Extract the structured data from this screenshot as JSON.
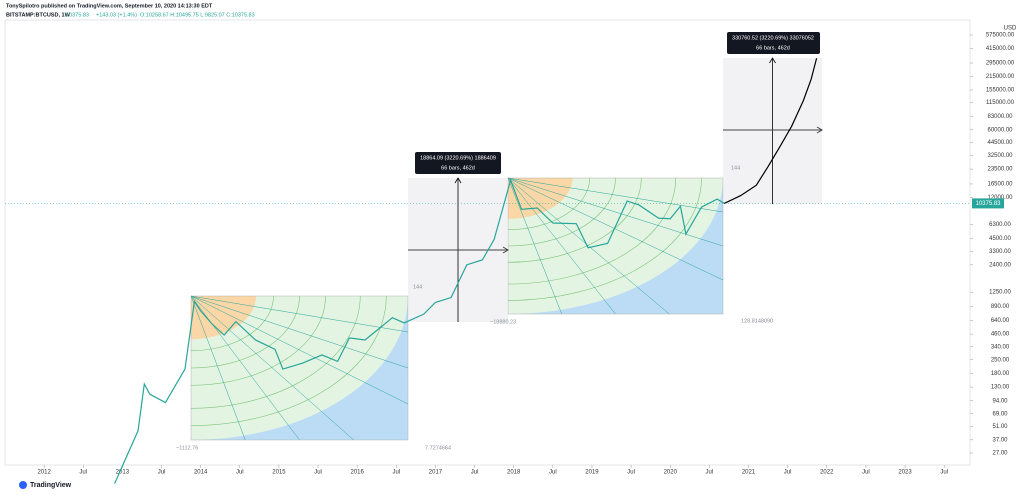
{
  "header": {
    "author_line": "TonySpilotro published on TradingView.com, September 10, 2020 14:13:30 EDT",
    "symbol_line": "BITSTAMP:BTCUSD, 1W",
    "last": "10375.83",
    "change": "+143.03 (+1.4%)",
    "ohlc": "O:10258.67  H:10495.75  L:9825.07  C:10375.83"
  },
  "footer": {
    "brand": "TradingView"
  },
  "chart_data": {
    "type": "line",
    "log_scale": true,
    "y_unit": "USD",
    "x": [
      2012.9,
      2013.2,
      2013.28,
      2013.35,
      2013.55,
      2013.8,
      2013.92,
      2014.0,
      2014.15,
      2014.3,
      2014.45,
      2014.7,
      2014.95,
      2015.05,
      2015.3,
      2015.55,
      2015.75,
      2015.9,
      2016.1,
      2016.45,
      2016.6,
      2016.85,
      2017.0,
      2017.2,
      2017.4,
      2017.6,
      2017.75,
      2017.96,
      2018.1,
      2018.3,
      2018.5,
      2018.8,
      2018.95,
      2019.2,
      2019.45,
      2019.6,
      2019.85,
      2020.0,
      2020.13,
      2020.2,
      2020.4,
      2020.6,
      2020.69,
      2020.9,
      2021.1,
      2021.25,
      2021.4,
      2021.55,
      2021.7,
      2021.8,
      2021.87
    ],
    "series": [
      {
        "color": "#26a69a",
        "values": [
          13,
          46,
          140,
          110,
          90,
          200,
          1000,
          800,
          580,
          450,
          620,
          400,
          320,
          200,
          230,
          280,
          240,
          420,
          400,
          680,
          600,
          740,
          980,
          1100,
          2400,
          2700,
          4400,
          18000,
          9000,
          9300,
          6500,
          6400,
          3600,
          4000,
          11000,
          10000,
          7300,
          7200,
          9700,
          5000,
          9500,
          11500,
          10375.83,
          null,
          null,
          null,
          null,
          null,
          null,
          null,
          null
        ]
      },
      {
        "color": "#000000",
        "values": [
          null,
          null,
          null,
          null,
          null,
          null,
          null,
          null,
          null,
          null,
          null,
          null,
          null,
          null,
          null,
          null,
          null,
          null,
          null,
          null,
          null,
          null,
          null,
          null,
          null,
          null,
          null,
          null,
          null,
          null,
          null,
          null,
          null,
          null,
          null,
          null,
          null,
          null,
          null,
          null,
          null,
          null,
          10375.83,
          12500,
          16000,
          25000,
          40000,
          65000,
          120000,
          200000,
          330000
        ]
      }
    ],
    "xlim": [
      2011.5,
      2023.83
    ],
    "xticks": [
      2012,
      {
        "value": 2012.5,
        "label": "Jul"
      },
      2013,
      {
        "value": 2013.5,
        "label": "Jul"
      },
      2014,
      {
        "value": 2014.5,
        "label": "Jul"
      },
      2015,
      {
        "value": 2015.5,
        "label": "Jul"
      },
      2016,
      {
        "value": 2016.5,
        "label": "Jul"
      },
      2017,
      {
        "value": 2017.5,
        "label": "Jul"
      },
      2018,
      {
        "value": 2018.5,
        "label": "Jul"
      },
      2019,
      {
        "value": 2019.5,
        "label": "Jul"
      },
      2020,
      {
        "value": 2020.5,
        "label": "Jul"
      },
      2021,
      {
        "value": 2021.5,
        "label": "Jul"
      },
      2022,
      {
        "value": 2022.5,
        "label": "Jul"
      },
      2023,
      {
        "value": 2023.5,
        "label": "Jul"
      }
    ],
    "ylim": [
      20.3,
      822000
    ],
    "yticks": [
      {
        "value": 575000,
        "label": "575000.00"
      },
      {
        "value": 415000,
        "label": "415000.00"
      },
      {
        "value": 295000,
        "label": "295000.00"
      },
      {
        "value": 215000,
        "label": "215000.00"
      },
      {
        "value": 155000,
        "label": "155000.00"
      },
      {
        "value": 115000,
        "label": "115000.00"
      },
      {
        "value": 83000,
        "label": "83000.00"
      },
      {
        "value": 60000,
        "label": "60000.00"
      },
      {
        "value": 44500,
        "label": "44500.00"
      },
      {
        "value": 32500,
        "label": "32500.00"
      },
      {
        "value": 23500,
        "label": "23500.00"
      },
      {
        "value": 16500,
        "label": "16500.00"
      },
      {
        "value": 12000,
        "label": "12000.00"
      },
      {
        "value": 6300,
        "label": "6300.00"
      },
      {
        "value": 4500,
        "label": "4500.00"
      },
      {
        "value": 3300,
        "label": "3300.00"
      },
      {
        "value": 2400,
        "label": "2400.00"
      },
      {
        "value": 1250,
        "label": "1250.00"
      },
      {
        "value": 890,
        "label": "890.00"
      },
      {
        "value": 640,
        "label": "640.00"
      },
      {
        "value": 460,
        "label": "460.00"
      },
      {
        "value": 340,
        "label": "340.00"
      },
      {
        "value": 250,
        "label": "250.00"
      },
      {
        "value": 180,
        "label": "180.00"
      },
      {
        "value": 130,
        "label": "130.00"
      },
      {
        "value": 94,
        "label": "94.00"
      },
      {
        "value": 69,
        "label": "69.00"
      },
      {
        "value": 51,
        "label": "51.00"
      },
      {
        "value": 37,
        "label": "37.00"
      },
      {
        "value": 27,
        "label": "27.00"
      }
    ],
    "annotations": [
      "18864.09 (3220.69%) 1886409",
      "66 bars, 462d",
      "330760.52 (3220.69%) 33076052",
      "66 bars, 462d",
      "144",
      "144",
      "~1112.76",
      "7.7274664",
      "~18880.23",
      "128.8148090"
    ]
  }
}
